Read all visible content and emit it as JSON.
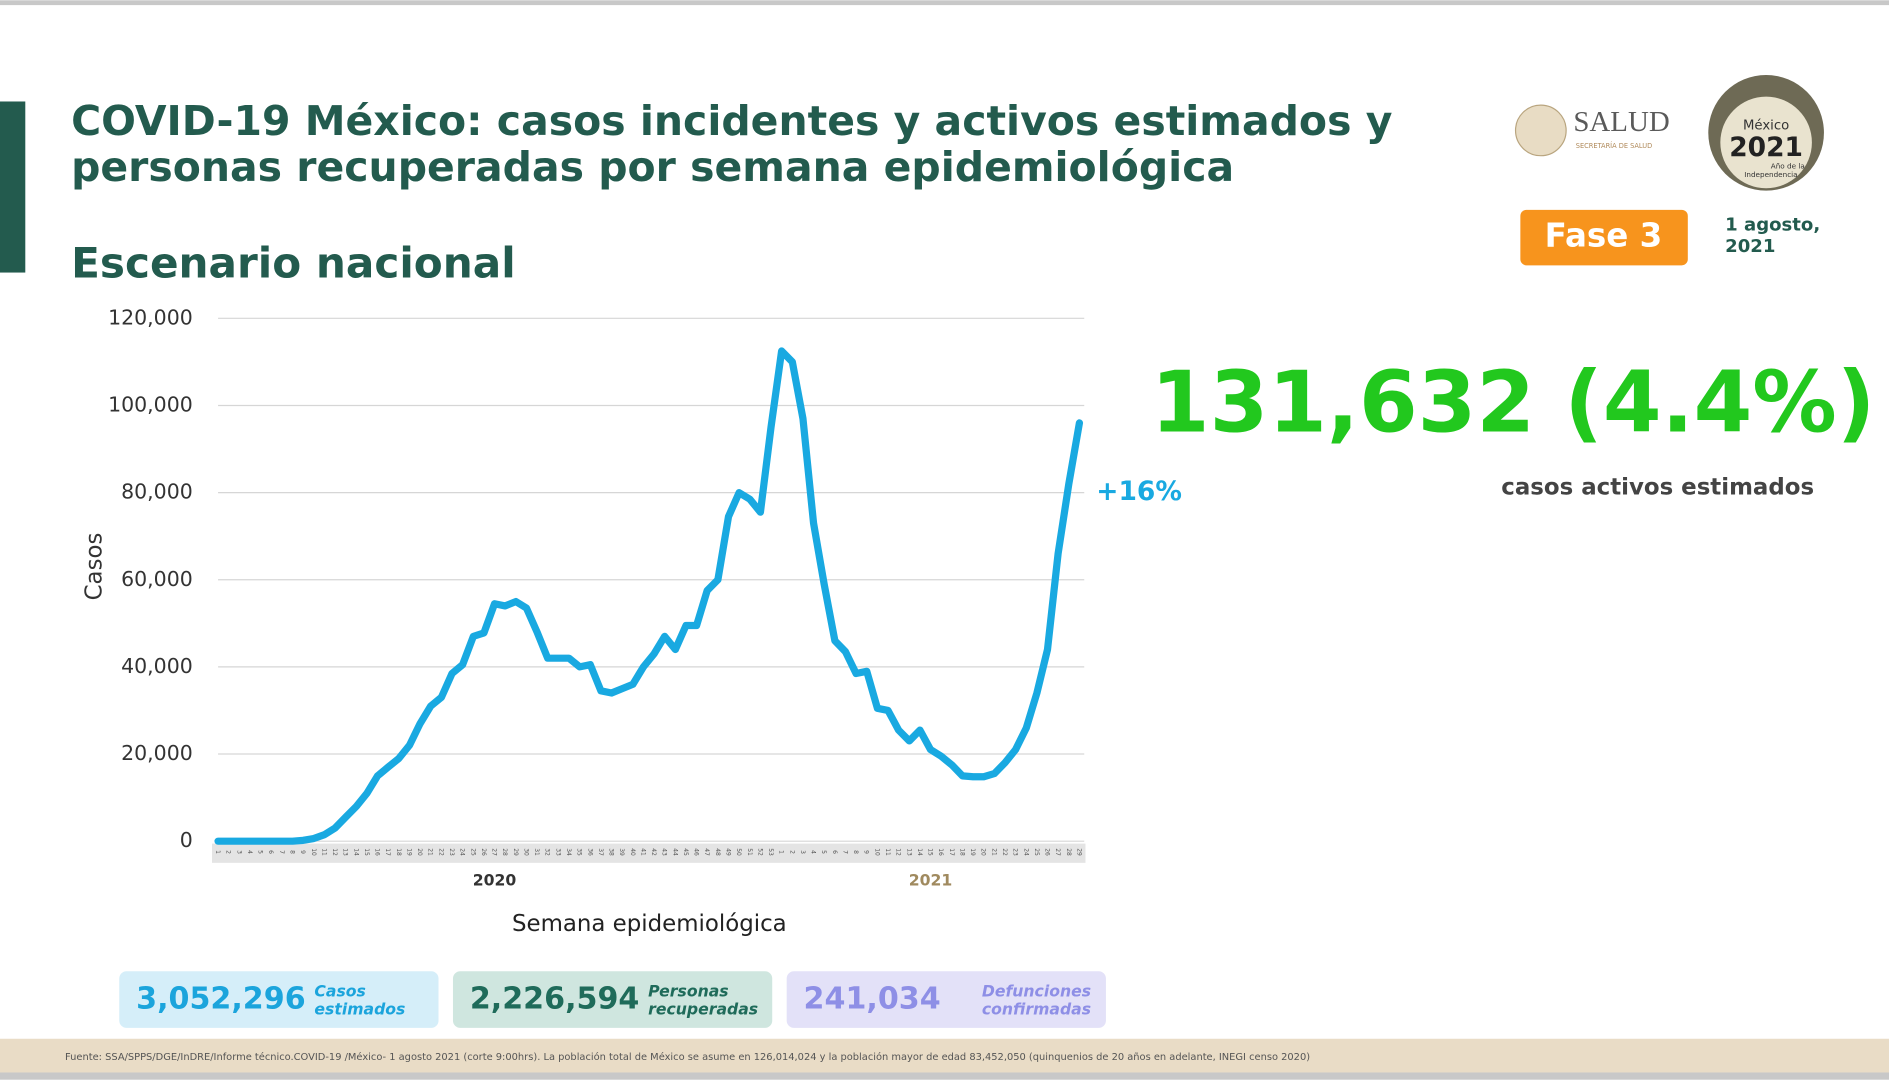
{
  "header": {
    "title_lines": [
      "COVID-19 México: casos incidentes y activos estimados y",
      "personas recuperadas por semana epidemiológica"
    ],
    "subtitle": "Escenario nacional",
    "logo_text": "SALUD",
    "logo_subtext": "SECRETARÍA DE SALUD",
    "emblem_lines": [
      "México",
      "2021",
      "Año de la",
      "Independencia"
    ],
    "phase": "Fase 3",
    "date_lines": [
      "1 agosto,",
      "2021"
    ]
  },
  "chart_data": {
    "type": "line",
    "ylabel": "Casos",
    "xlabel": "Semana epidemiológica",
    "year_labels": [
      "2020",
      "2021"
    ],
    "categories": [
      "1",
      "2",
      "3",
      "4",
      "5",
      "6",
      "7",
      "8",
      "9",
      "10",
      "11",
      "12",
      "13",
      "14",
      "15",
      "16",
      "17",
      "18",
      "19",
      "20",
      "21",
      "22",
      "23",
      "24",
      "25",
      "26",
      "27",
      "28",
      "29",
      "30",
      "31",
      "32",
      "33",
      "34",
      "35",
      "36",
      "37",
      "38",
      "39",
      "40",
      "41",
      "42",
      "43",
      "44",
      "45",
      "46",
      "47",
      "48",
      "49",
      "50",
      "51",
      "52",
      "53",
      "1",
      "2",
      "3",
      "4",
      "5",
      "6",
      "7",
      "8",
      "9",
      "10",
      "11",
      "12",
      "13",
      "14",
      "15",
      "16",
      "17",
      "18",
      "19",
      "20",
      "21",
      "22",
      "23",
      "24",
      "25",
      "26",
      "27",
      "28",
      "29"
    ],
    "values": [
      0,
      0,
      0,
      0,
      0,
      0,
      0,
      0,
      200,
      600,
      1500,
      3000,
      5500,
      8000,
      11000,
      15000,
      17000,
      19000,
      22000,
      27000,
      31000,
      33000,
      38500,
      40500,
      47000,
      47800,
      54500,
      54000,
      55000,
      53500,
      48000,
      42000,
      42000,
      42000,
      40000,
      40500,
      34500,
      34000,
      35000,
      36000,
      40000,
      43000,
      47000,
      44000,
      49500,
      49500,
      57500,
      60000,
      74500,
      80000,
      78500,
      75500,
      95000,
      112500,
      110000,
      97000,
      73000,
      59000,
      46000,
      43500,
      38500,
      39000,
      30500,
      30000,
      25500,
      23000,
      25500,
      21000,
      19500,
      17500,
      15000,
      14800,
      14800,
      15500,
      18000,
      21000,
      26000,
      34000,
      44000,
      66000,
      82000,
      96000
    ],
    "color": "#19a9e1",
    "ylim": [
      0,
      120000
    ],
    "yticks": [
      0,
      {
        "value": 20000,
        "label": "20,000"
      },
      {
        "value": 40000,
        "label": "40,000"
      },
      {
        "value": 60000,
        "label": "60,000"
      },
      {
        "value": 80000,
        "label": "80,000"
      },
      {
        "value": 100000,
        "label": "100,000"
      },
      {
        "value": 120000,
        "label": "120,000"
      }
    ],
    "grid": true,
    "annotation": "+16%"
  },
  "highlight": {
    "value": "131,632 (4.4%)",
    "label": "casos activos estimados"
  },
  "stats": [
    {
      "value": "3,052,296",
      "label_lines": [
        "Casos",
        "estimados"
      ]
    },
    {
      "value": "2,226,594",
      "label_lines": [
        "Personas",
        "recuperadas"
      ]
    },
    {
      "value": "241,034",
      "label_lines": [
        "Defunciones",
        "confirmadas"
      ]
    }
  ],
  "footer": "Fuente: SSA/SPPS/DGE/InDRE/Informe técnico.COVID-19 /México- 1 agosto 2021 (corte 9:00hrs). La población total de México se asume en 126,014,024 y la población mayor de edad 83,452,050 (quinquenios de 20 años en adelante, INEGI censo 2020)"
}
